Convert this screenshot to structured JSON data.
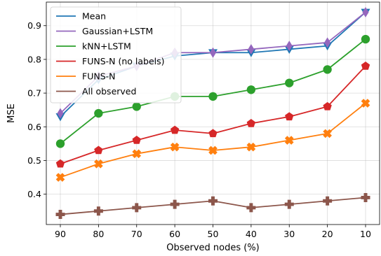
{
  "chart_data": {
    "type": "line",
    "xlabel": "Observed nodes (%)",
    "ylabel": "MSE",
    "x": [
      90,
      80,
      70,
      60,
      50,
      40,
      30,
      20,
      10
    ],
    "ylim": [
      0.31,
      0.97
    ],
    "yticks": [
      0.4,
      0.5,
      0.6,
      0.7,
      0.8,
      0.9
    ],
    "grid": true,
    "legend_position": "top-left",
    "series": [
      {
        "name": "Mean",
        "color": "#1f77b4",
        "marker": "triangle-down",
        "values": [
          0.63,
          0.74,
          0.78,
          0.81,
          0.82,
          0.82,
          0.83,
          0.84,
          0.94
        ]
      },
      {
        "name": "Gaussian+LSTM",
        "color": "#9467bd",
        "marker": "diamond",
        "values": [
          0.64,
          0.75,
          0.78,
          0.82,
          0.82,
          0.83,
          0.84,
          0.85,
          0.94
        ]
      },
      {
        "name": "kNN+LSTM",
        "color": "#2ca02c",
        "marker": "circle",
        "values": [
          0.55,
          0.64,
          0.66,
          0.69,
          0.69,
          0.71,
          0.73,
          0.77,
          0.86
        ]
      },
      {
        "name": "FUNS-N (no labels)",
        "color": "#d62728",
        "marker": "pentagon",
        "values": [
          0.49,
          0.53,
          0.56,
          0.59,
          0.58,
          0.61,
          0.63,
          0.66,
          0.78
        ]
      },
      {
        "name": "FUNS-N",
        "color": "#ff7f0e",
        "marker": "x-filled",
        "values": [
          0.45,
          0.49,
          0.52,
          0.54,
          0.53,
          0.54,
          0.56,
          0.58,
          0.67
        ]
      },
      {
        "name": "All observed",
        "color": "#8c564b",
        "marker": "plus-filled",
        "values": [
          0.34,
          0.35,
          0.36,
          0.37,
          0.38,
          0.36,
          0.37,
          0.38,
          0.39
        ]
      }
    ]
  }
}
